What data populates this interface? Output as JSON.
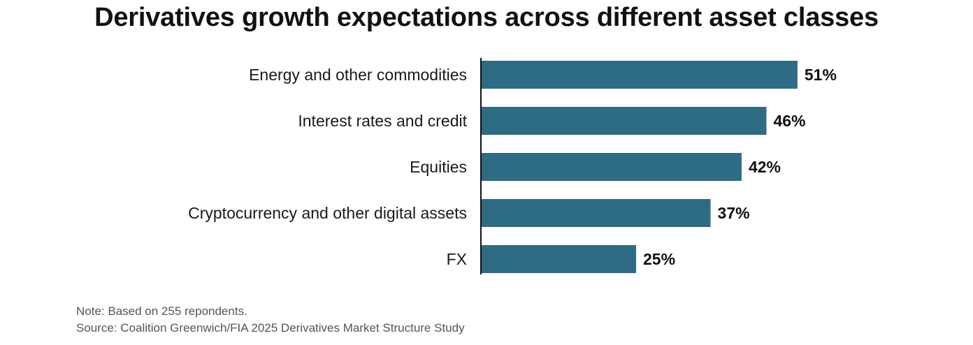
{
  "chart_data": {
    "type": "bar",
    "orientation": "horizontal",
    "title": "Derivatives growth expectations across different asset classes",
    "categories": [
      "Energy and other commodities",
      "Interest rates and credit",
      "Equities",
      "Cryptocurrency and other digital assets",
      "FX"
    ],
    "values": [
      51,
      46,
      42,
      37,
      25
    ],
    "value_labels": [
      "51%",
      "46%",
      "42%",
      "37%",
      "25%"
    ],
    "unit": "%",
    "xlim": [
      0,
      51
    ],
    "grid": false,
    "legend": "none",
    "bar_color": "#2e6b85"
  },
  "footnotes": {
    "note": "Note: Based on 255 repondents.",
    "source": "Source: Coalition Greenwich/FIA 2025 Derivatives Market Structure Study"
  }
}
